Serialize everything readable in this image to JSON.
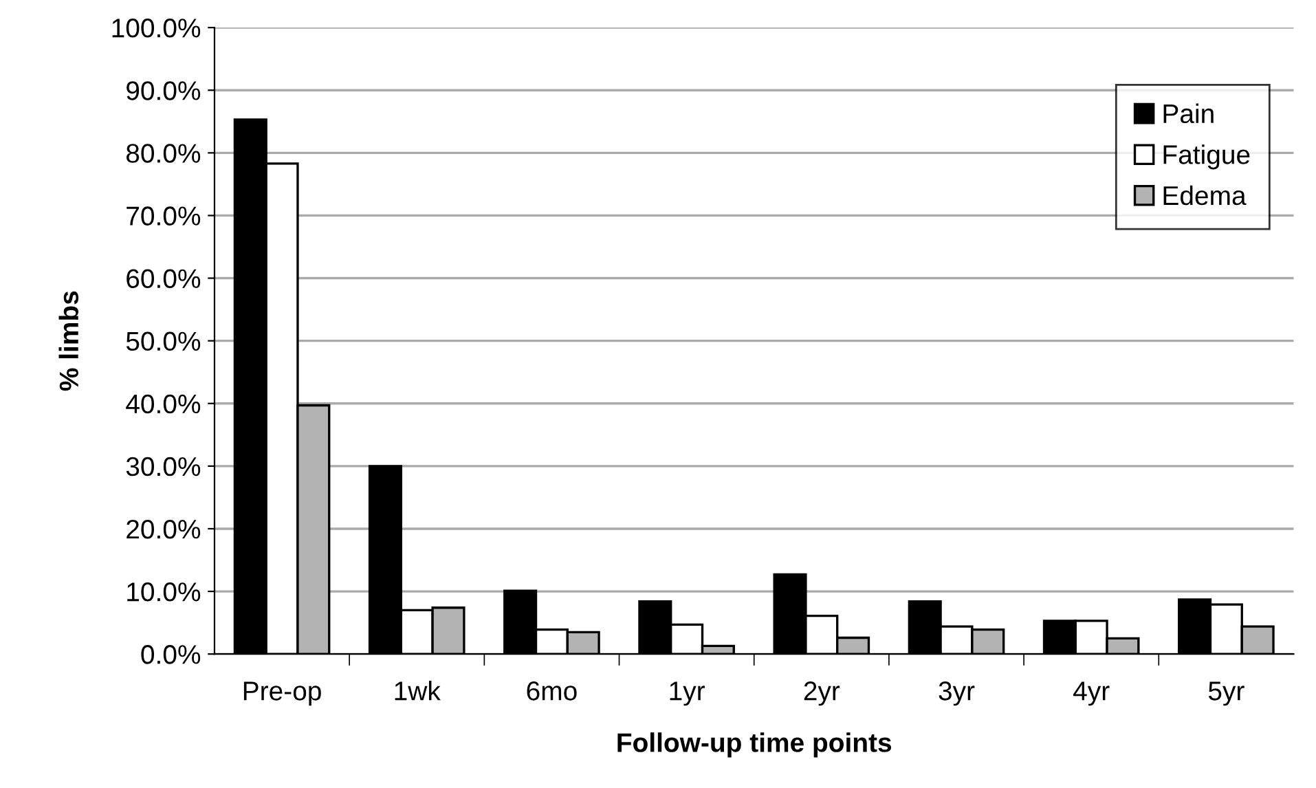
{
  "chart_data": {
    "type": "bar",
    "xlabel": "Follow-up time points",
    "ylabel": "% limbs",
    "categories": [
      "Pre-op",
      "1wk",
      "6mo",
      "1yr",
      "2yr",
      "3yr",
      "4yr",
      "5yr"
    ],
    "series": [
      {
        "name": "Pain",
        "color": "#000000",
        "values": [
          85.3,
          30.0,
          10.1,
          8.4,
          12.7,
          8.4,
          5.3,
          8.7
        ]
      },
      {
        "name": "Fatigue",
        "color": "#ffffff",
        "values": [
          78.3,
          7.0,
          3.9,
          4.7,
          6.1,
          4.4,
          5.3,
          7.9
        ]
      },
      {
        "name": "Edema",
        "color": "#b3b3b3",
        "values": [
          39.7,
          7.4,
          3.5,
          1.3,
          2.6,
          3.9,
          2.5,
          4.4
        ]
      }
    ],
    "ylim": [
      0,
      100
    ],
    "yticks": [
      {
        "value": 0,
        "label": "0.0%"
      },
      {
        "value": 10,
        "label": "10.0%"
      },
      {
        "value": 20,
        "label": "20.0%"
      },
      {
        "value": 30,
        "label": "30.0%"
      },
      {
        "value": 40,
        "label": "40.0%"
      },
      {
        "value": 50,
        "label": "50.0%"
      },
      {
        "value": 60,
        "label": "60.0%"
      },
      {
        "value": 70,
        "label": "70.0%"
      },
      {
        "value": 80,
        "label": "80.0%"
      },
      {
        "value": 90,
        "label": "90.0%"
      },
      {
        "value": 100,
        "label": "100.0%"
      }
    ],
    "grid": "y",
    "legend": "top right"
  }
}
